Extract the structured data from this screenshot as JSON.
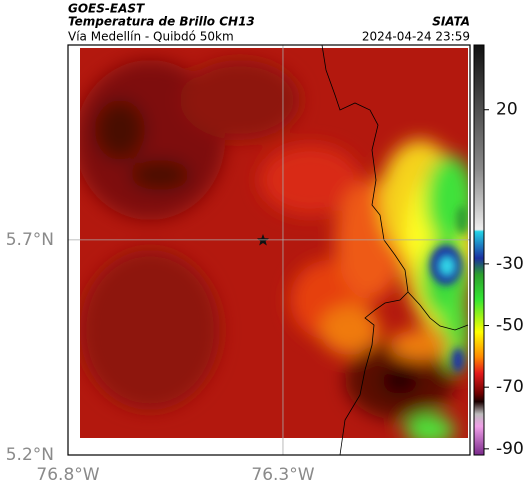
{
  "header": {
    "title": "GOES-EAST",
    "subtitle": "Temperatura de Brillo CH13",
    "region": "Vía Medellín - Quibdó 50km",
    "source": "SIATA",
    "datetime": "2024-04-24 23:59"
  },
  "map": {
    "xlim": [
      -76.8,
      -75.865
    ],
    "ylim": [
      5.2,
      6.153
    ],
    "xticks": [
      {
        "value": -76.8,
        "label": "76.8°W"
      },
      {
        "value": -76.3,
        "label": "76.3°W"
      }
    ],
    "yticks": [
      {
        "value": 5.7,
        "label": "5.7°N"
      },
      {
        "value": 5.2,
        "label": "5.2°N"
      }
    ],
    "grid": true
  },
  "colorbar": {
    "lim": [
      -92,
      41
    ],
    "ticks": [
      20,
      -30,
      -50,
      -70,
      -90
    ]
  }
}
